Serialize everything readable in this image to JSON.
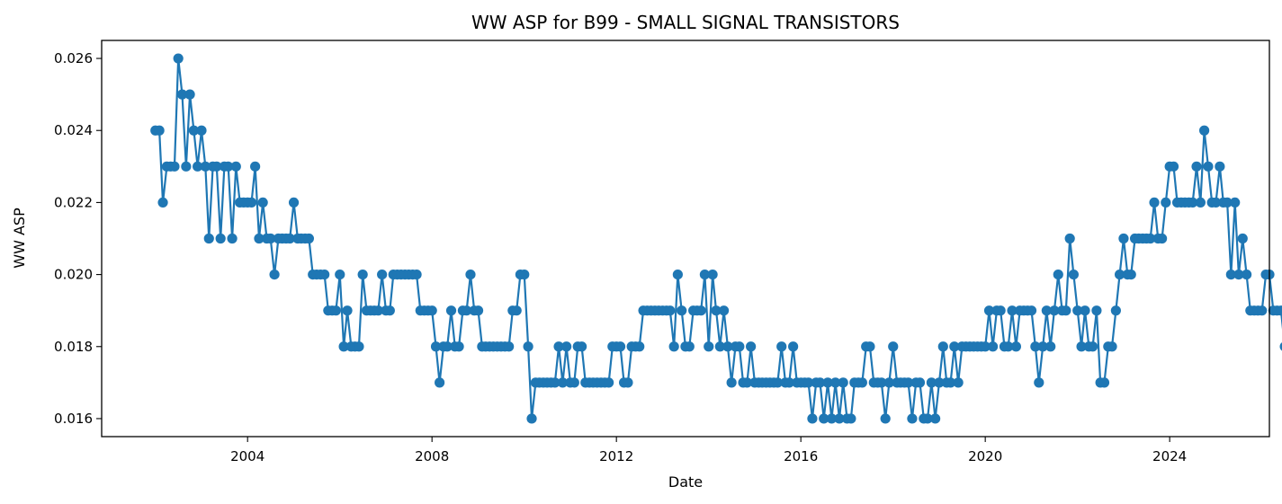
{
  "chart_data": {
    "type": "line",
    "title": "WW ASP for B99 - SMALL SIGNAL TRANSISTORS",
    "xlabel": "Date",
    "ylabel": "WW ASP",
    "xlim": [
      "2000-11-01",
      "2026-03-01"
    ],
    "ylim": [
      0.0155,
      0.0265
    ],
    "x_ticks": [
      {
        "date": "2004-01-01",
        "label": "2004"
      },
      {
        "date": "2008-01-01",
        "label": "2008"
      },
      {
        "date": "2012-01-01",
        "label": "2012"
      },
      {
        "date": "2016-01-01",
        "label": "2016"
      },
      {
        "date": "2020-01-01",
        "label": "2020"
      },
      {
        "date": "2024-01-01",
        "label": "2024"
      }
    ],
    "y_ticks": [
      {
        "value": 0.016,
        "label": "0.016"
      },
      {
        "value": 0.018,
        "label": "0.018"
      },
      {
        "value": 0.02,
        "label": "0.020"
      },
      {
        "value": 0.022,
        "label": "0.022"
      },
      {
        "value": 0.024,
        "label": "0.024"
      },
      {
        "value": 0.026,
        "label": "0.026"
      }
    ],
    "grid": false,
    "legend": "none",
    "color": "#1f77b4",
    "marker": "circle",
    "start_month": "2002-01",
    "series": [
      {
        "values": [
          0.024,
          0.024,
          0.022,
          0.023,
          0.023,
          0.023,
          0.026,
          0.025,
          0.023,
          0.025,
          0.024,
          0.023,
          0.024,
          0.023,
          0.021,
          0.023,
          0.023,
          0.021,
          0.023,
          0.023,
          0.021,
          0.023,
          0.022,
          0.022,
          0.022,
          0.022,
          0.023,
          0.021,
          0.022,
          0.021,
          0.021,
          0.02,
          0.021,
          0.021,
          0.021,
          0.021,
          0.022,
          0.021,
          0.021,
          0.021,
          0.021,
          0.02,
          0.02,
          0.02,
          0.02,
          0.019,
          0.019,
          0.019,
          0.02,
          0.018,
          0.019,
          0.018,
          0.018,
          0.018,
          0.02,
          0.019,
          0.019,
          0.019,
          0.019,
          0.02,
          0.019,
          0.019,
          0.02,
          0.02,
          0.02,
          0.02,
          0.02,
          0.02,
          0.02,
          0.019,
          0.019,
          0.019,
          0.019,
          0.018,
          0.017,
          0.018,
          0.018,
          0.019,
          0.018,
          0.018,
          0.019,
          0.019,
          0.02,
          0.019,
          0.019,
          0.018,
          0.018,
          0.018,
          0.018,
          0.018,
          0.018,
          0.018,
          0.018,
          0.019,
          0.019,
          0.02,
          0.02,
          0.018,
          0.016,
          0.017,
          0.017,
          0.017,
          0.017,
          0.017,
          0.017,
          0.018,
          0.017,
          0.018,
          0.017,
          0.017,
          0.018,
          0.018,
          0.017,
          0.017,
          0.017,
          0.017,
          0.017,
          0.017,
          0.017,
          0.018,
          0.018,
          0.018,
          0.017,
          0.017,
          0.018,
          0.018,
          0.018,
          0.019,
          0.019,
          0.019,
          0.019,
          0.019,
          0.019,
          0.019,
          0.019,
          0.018,
          0.02,
          0.019,
          0.018,
          0.018,
          0.019,
          0.019,
          0.019,
          0.02,
          0.018,
          0.02,
          0.019,
          0.018,
          0.019,
          0.018,
          0.017,
          0.018,
          0.018,
          0.017,
          0.017,
          0.018,
          0.017,
          0.017,
          0.017,
          0.017,
          0.017,
          0.017,
          0.017,
          0.018,
          0.017,
          0.017,
          0.018,
          0.017,
          0.017,
          0.017,
          0.017,
          0.016,
          0.017,
          0.017,
          0.016,
          0.017,
          0.016,
          0.017,
          0.016,
          0.017,
          0.016,
          0.016,
          0.017,
          0.017,
          0.017,
          0.018,
          0.018,
          0.017,
          0.017,
          0.017,
          0.016,
          0.017,
          0.018,
          0.017,
          0.017,
          0.017,
          0.017,
          0.016,
          0.017,
          0.017,
          0.016,
          0.016,
          0.017,
          0.016,
          0.017,
          0.018,
          0.017,
          0.017,
          0.018,
          0.017,
          0.018,
          0.018,
          0.018,
          0.018,
          0.018,
          0.018,
          0.018,
          0.019,
          0.018,
          0.019,
          0.019,
          0.018,
          0.018,
          0.019,
          0.018,
          0.019,
          0.019,
          0.019,
          0.019,
          0.018,
          0.017,
          0.018,
          0.019,
          0.018,
          0.019,
          0.02,
          0.019,
          0.019,
          0.021,
          0.02,
          0.019,
          0.018,
          0.019,
          0.018,
          0.018,
          0.019,
          0.017,
          0.017,
          0.018,
          0.018,
          0.019,
          0.02,
          0.021,
          0.02,
          0.02,
          0.021,
          0.021,
          0.021,
          0.021,
          0.021,
          0.022,
          0.021,
          0.021,
          0.022,
          0.023,
          0.023,
          0.022,
          0.022,
          0.022,
          0.022,
          0.022,
          0.023,
          0.022,
          0.024,
          0.023,
          0.022,
          0.022,
          0.023,
          0.022,
          0.022,
          0.02,
          0.022,
          0.02,
          0.021,
          0.02,
          0.019,
          0.019,
          0.019,
          0.019,
          0.02,
          0.02,
          0.019,
          0.019,
          0.019,
          0.018,
          0.018,
          0.019
        ]
      }
    ]
  }
}
